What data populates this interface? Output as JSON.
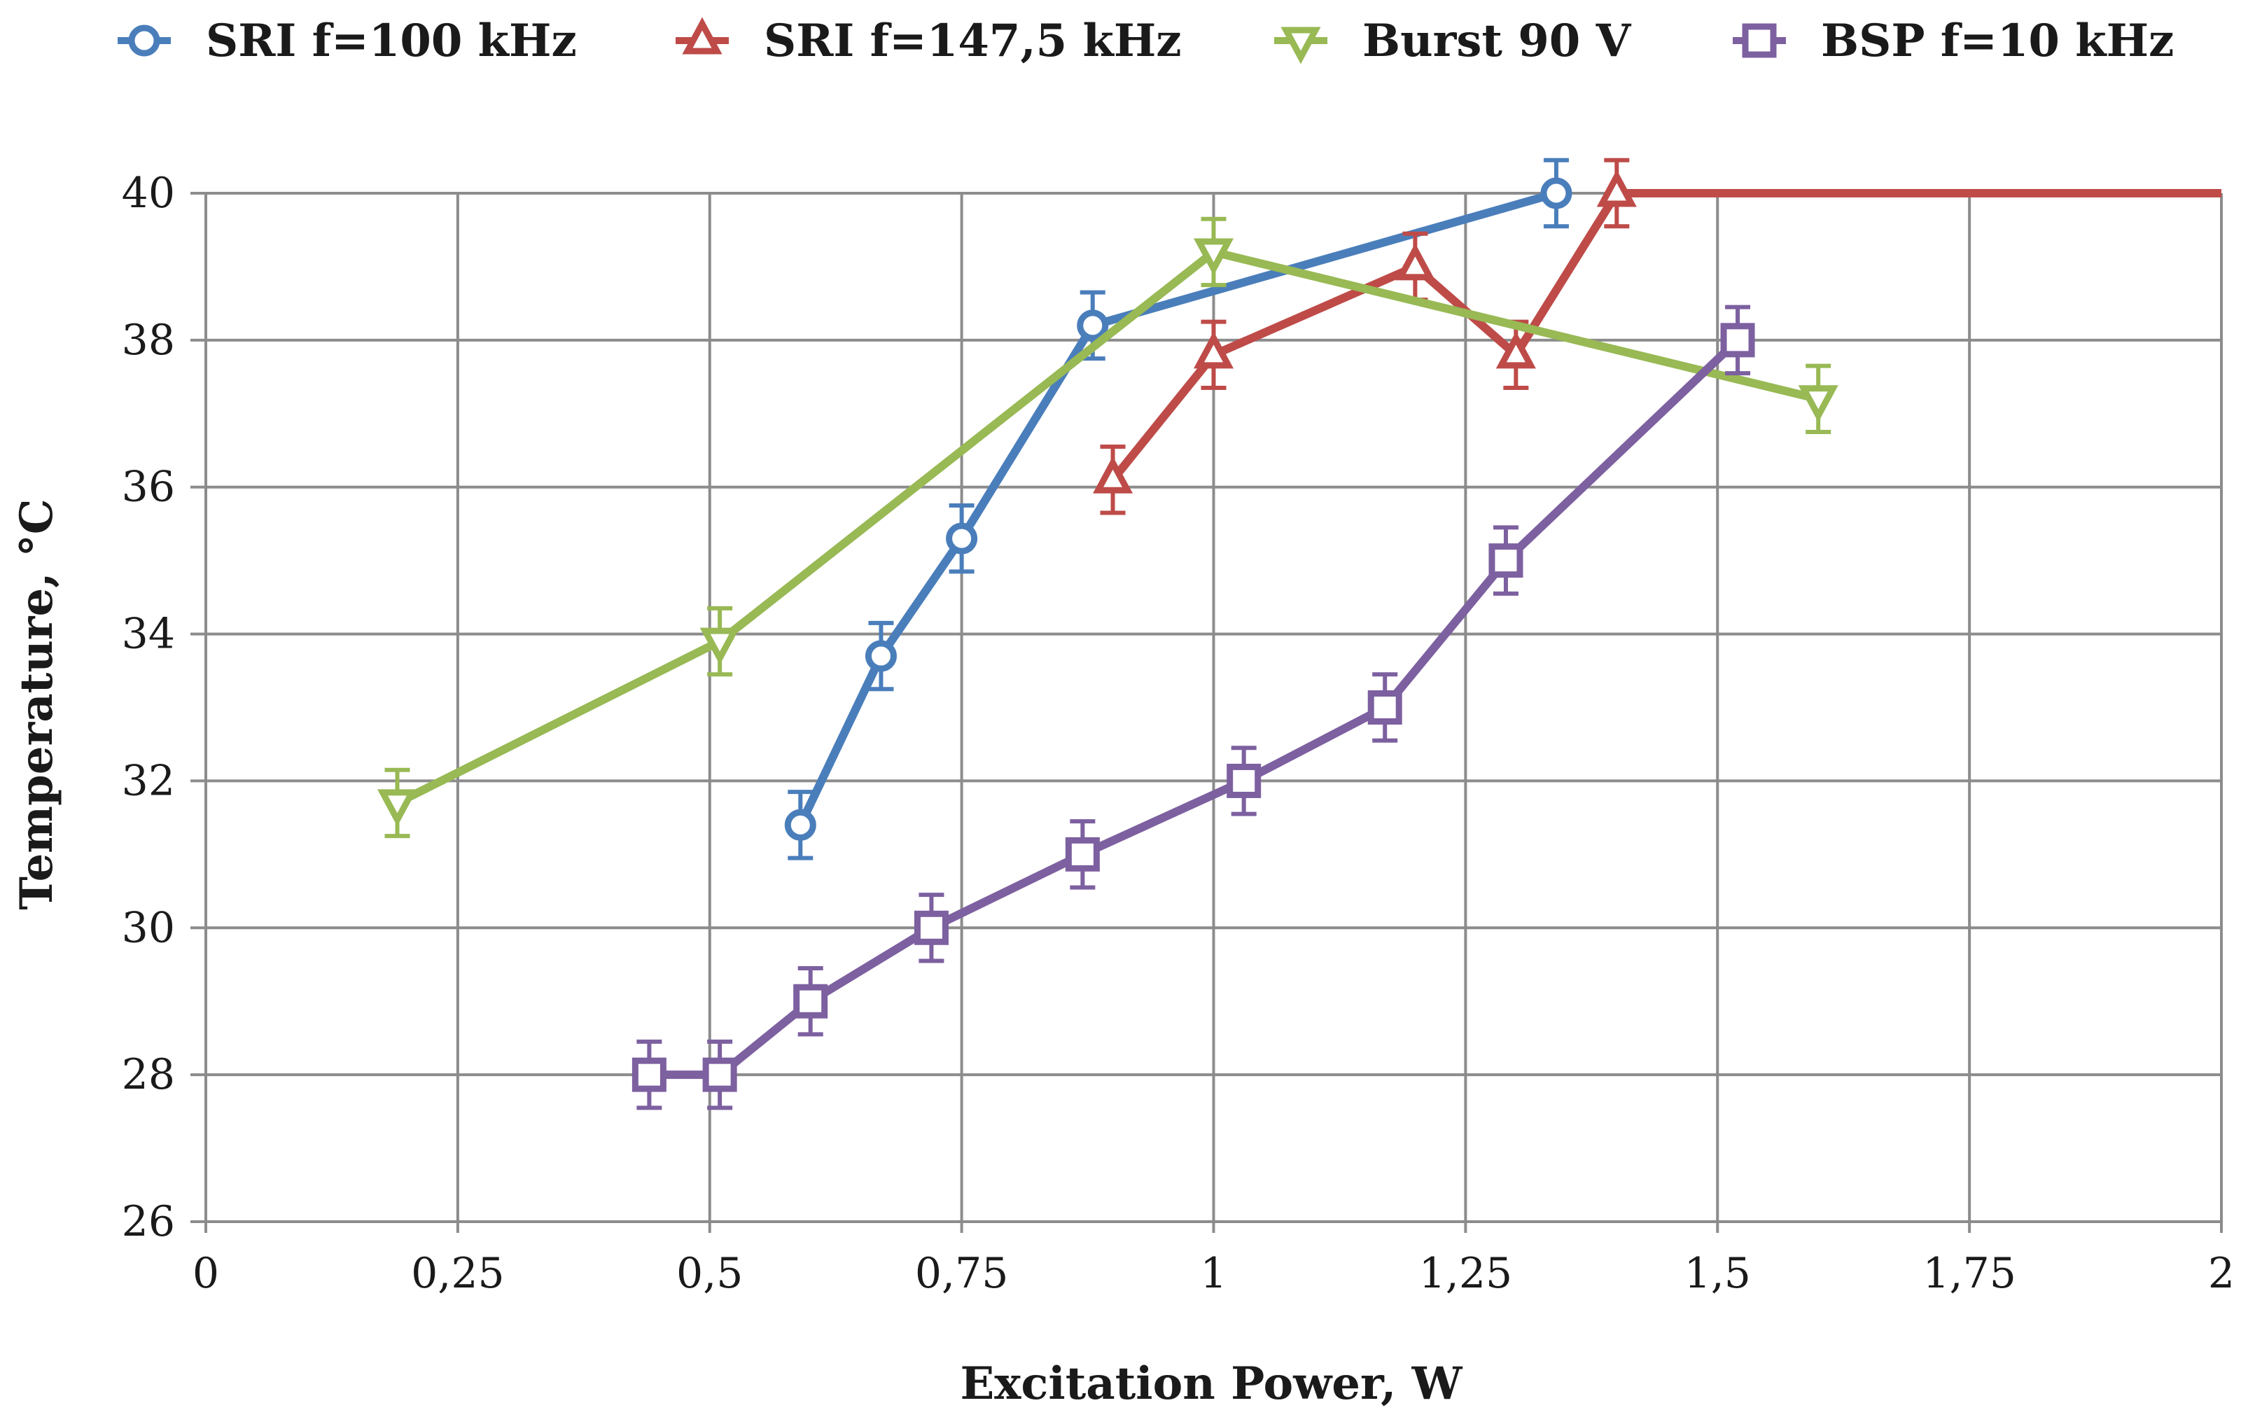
{
  "chart_data": {
    "type": "line",
    "title": "",
    "xlabel": "Excitation Power, W",
    "ylabel": "Temperature, °C",
    "xlim": [
      0,
      2
    ],
    "ylim": [
      26,
      40
    ],
    "x_ticks": [
      0,
      0.25,
      0.5,
      0.75,
      1,
      1.25,
      1.5,
      1.75,
      2
    ],
    "x_tick_labels": [
      "0",
      "0,25",
      "0,5",
      "0,75",
      "1",
      "1,25",
      "1,5",
      "1,75",
      "2"
    ],
    "y_ticks": [
      26,
      28,
      30,
      32,
      34,
      36,
      38,
      40
    ],
    "y_tick_labels": [
      "26",
      "28",
      "30",
      "32",
      "34",
      "36",
      "38",
      "40"
    ],
    "grid": true,
    "legend_position": "top",
    "error_bar": 0.45,
    "series": [
      {
        "name": "SRI f=100 kHz",
        "color": "#4a7ebb",
        "marker": "circle",
        "x": [
          0.59,
          0.67,
          0.75,
          0.88,
          1.34
        ],
        "y": [
          31.4,
          33.7,
          35.3,
          38.2,
          40.0
        ]
      },
      {
        "name": "SRI f=147,5 kHz",
        "color": "#be4b48",
        "marker": "triangle-up",
        "x": [
          0.9,
          1.0,
          1.2,
          1.3,
          1.4,
          2.0
        ],
        "y": [
          36.1,
          37.8,
          39.0,
          37.8,
          40.0,
          40.0
        ],
        "error_bar_points": 5
      },
      {
        "name": "Burst 90 V",
        "color": "#98b954",
        "marker": "triangle-down",
        "x": [
          0.19,
          0.51,
          1.0,
          1.6
        ],
        "y": [
          31.7,
          33.9,
          39.2,
          37.2
        ]
      },
      {
        "name": "BSP f=10 kHz",
        "color": "#7d60a0",
        "marker": "square",
        "x": [
          0.44,
          0.51,
          0.6,
          0.72,
          0.87,
          1.03,
          1.17,
          1.29,
          1.52
        ],
        "y": [
          28,
          28,
          29,
          30,
          31,
          32,
          33,
          35,
          38
        ]
      }
    ]
  }
}
